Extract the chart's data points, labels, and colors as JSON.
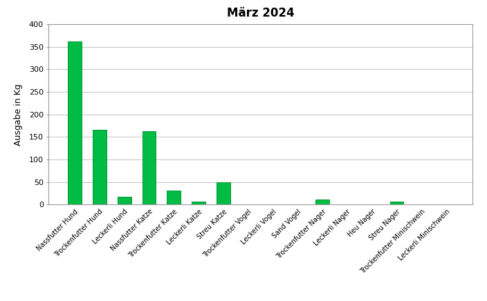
{
  "title": "März 2024",
  "ylabel": "Ausgabe in Kg",
  "bar_color": "#00bb44",
  "bar_edgecolor": "#009933",
  "background_color": "#ffffff",
  "plot_bg_color": "#ffffff",
  "border_color": "#999999",
  "grid_color": "#aaaaaa",
  "ylim": [
    0,
    400
  ],
  "yticks": [
    0,
    50,
    100,
    150,
    200,
    250,
    300,
    350,
    400
  ],
  "categories": [
    "Nassfutter Hund",
    "Trockenfutter Hund",
    "Leckerli Hund",
    "Nassfutter Katze",
    "Trockenfutter Katze",
    "Leckerli Katze",
    "Streu Katze",
    "Trockenfutter Vogel",
    "Leckerli Vogel",
    "Sand Vogel",
    "Trockenfutter Nager",
    "Leckerli Nager",
    "Heu Nager",
    "Streu Nager",
    "Trockenfutter Minischwein",
    "Leckerli Minischwein"
  ],
  "values": [
    362,
    166,
    17,
    163,
    32,
    7,
    50,
    1,
    1,
    1,
    12,
    1,
    1,
    7,
    1,
    1
  ],
  "title_fontsize": 12,
  "ylabel_fontsize": 9,
  "xtick_fontsize": 7,
  "ytick_fontsize": 8,
  "bar_width": 0.55,
  "figsize": [
    7.04,
    4.36
  ],
  "dpi": 100
}
